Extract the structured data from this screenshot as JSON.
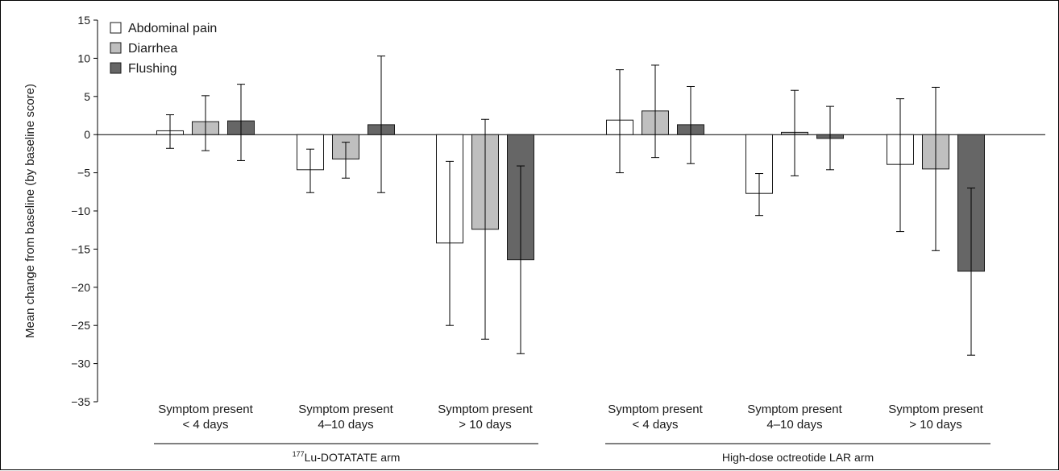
{
  "chart_data": {
    "type": "bar",
    "ylabel": "Mean change from baseline (by baseline score)",
    "ylim": [
      -35,
      15
    ],
    "yticks": [
      15,
      10,
      5,
      0,
      -5,
      -10,
      -15,
      -20,
      -25,
      -30,
      -35
    ],
    "ytick_labels": [
      "15",
      "10",
      "5",
      "0",
      "−5",
      "−10",
      "−15",
      "−20",
      "−25",
      "−30",
      "−35"
    ],
    "legend_position": "top-left",
    "groups": [
      {
        "label_sup": "177",
        "label": "Lu-DOTATATE arm"
      },
      {
        "label_sup": "",
        "label": "High-dose octreotide LAR arm"
      }
    ],
    "categories": [
      [
        "Symptom present",
        "< 4 days"
      ],
      [
        "Symptom present",
        "4–10 days"
      ],
      [
        "Symptom present",
        "> 10 days"
      ],
      [
        "Symptom present",
        "< 4 days"
      ],
      [
        "Symptom present",
        "4–10 days"
      ],
      [
        "Symptom present",
        "> 10 days"
      ]
    ],
    "series": [
      {
        "name": "Abdominal pain",
        "color": "#ffffff",
        "values": [
          0.5,
          -4.6,
          -14.2,
          1.9,
          -7.7,
          -3.9
        ],
        "err_low": [
          -1.8,
          -7.6,
          -25.0,
          -5.0,
          -10.6,
          -12.7
        ],
        "err_high": [
          2.6,
          -1.9,
          -3.5,
          8.5,
          -5.1,
          4.7
        ]
      },
      {
        "name": "Diarrhea",
        "color": "#bfbfbf",
        "values": [
          1.7,
          -3.2,
          -12.4,
          3.1,
          0.3,
          -4.5
        ],
        "err_low": [
          -2.1,
          -5.7,
          -26.8,
          -3.0,
          -5.4,
          -15.2
        ],
        "err_high": [
          5.1,
          -1.0,
          2.0,
          9.1,
          5.8,
          6.2
        ]
      },
      {
        "name": "Flushing",
        "color": "#666666",
        "values": [
          1.8,
          1.3,
          -16.4,
          1.3,
          -0.5,
          -17.9
        ],
        "err_low": [
          -3.4,
          -7.6,
          -28.7,
          -3.8,
          -4.6,
          -28.9
        ],
        "err_high": [
          6.6,
          10.3,
          -4.1,
          6.3,
          3.7,
          -7.0
        ]
      }
    ]
  }
}
